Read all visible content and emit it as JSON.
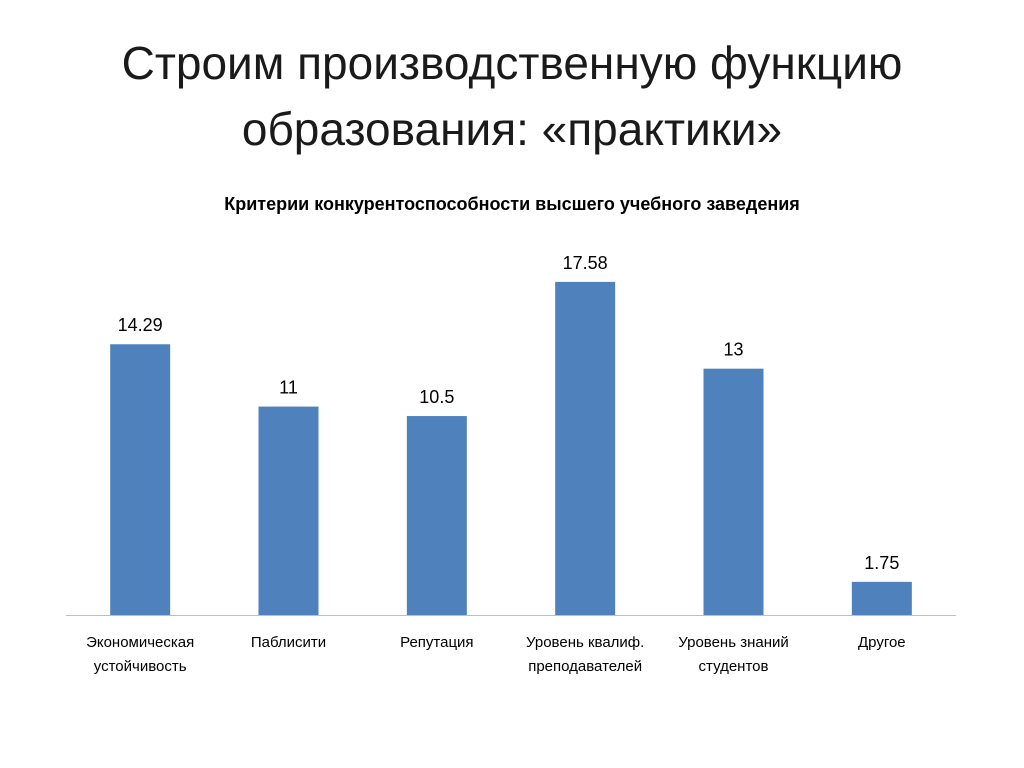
{
  "slide": {
    "title_line1": "Строим производственную функцию",
    "title_line2": "образования: «практики»"
  },
  "chart_data": {
    "type": "bar",
    "title": "Критерии конкурентоспособности высшего учебного заведения",
    "categories": [
      [
        "Экономическая",
        "устойчивость"
      ],
      [
        "Паблисити"
      ],
      [
        "Репутация"
      ],
      [
        "Уровень квалиф.",
        "преподавателей"
      ],
      [
        "Уровень знаний",
        "студентов"
      ],
      [
        "Другое"
      ]
    ],
    "values": [
      14.29,
      11,
      10.5,
      17.58,
      13,
      1.75
    ],
    "data_labels": [
      "14.29",
      "11",
      "10.5",
      "17.58",
      "13",
      "1.75"
    ],
    "ylim": [
      0,
      19
    ],
    "grid": false,
    "legend": "none",
    "bar_color": "#4f81bd",
    "axis_color": "#bfbfbf"
  }
}
